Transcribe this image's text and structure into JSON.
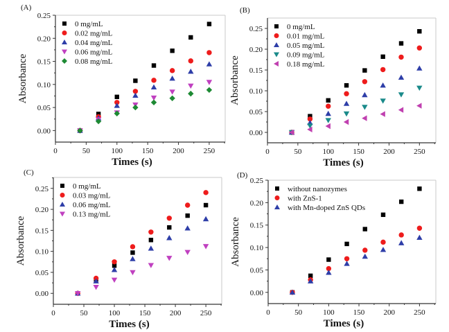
{
  "chart_data": [
    {
      "type": "scatter",
      "panel_label": "(A)",
      "xlabel": "Times (s)",
      "ylabel": "Absorbance",
      "xlim": [
        0,
        276
      ],
      "ylim": [
        -0.025,
        0.25
      ],
      "xticks": [
        0,
        50,
        100,
        150,
        200,
        250
      ],
      "xtick_labels": [
        "0",
        "50",
        "100",
        "150",
        "200",
        "250"
      ],
      "yticks": [
        0.0,
        0.05,
        0.1,
        0.15,
        0.2,
        0.25
      ],
      "ytick_labels": [
        "0.00",
        "0.05",
        "0.10",
        "0.15",
        "0.20",
        "0.25"
      ],
      "legend_position": "top-left",
      "x": [
        40,
        70,
        100,
        130,
        160,
        190,
        220,
        250
      ],
      "series": [
        {
          "name": "0 mg/mL",
          "marker": "square",
          "color": "#000000",
          "values": [
            0.0,
            0.036,
            0.073,
            0.108,
            0.141,
            0.173,
            0.202,
            0.231
          ]
        },
        {
          "name": "0.02 mg/mL",
          "marker": "circle",
          "color": "#ee1c1c",
          "values": [
            0.0,
            0.03,
            0.061,
            0.085,
            0.109,
            0.13,
            0.151,
            0.169
          ]
        },
        {
          "name": "0.04 mg/mL",
          "marker": "triangle-up",
          "color": "#2e3ea8",
          "values": [
            0.0,
            0.027,
            0.054,
            0.076,
            0.094,
            0.113,
            0.128,
            0.144
          ]
        },
        {
          "name": "0.06 mg/mL",
          "marker": "triangle-down",
          "color": "#c040c0",
          "values": [
            0.0,
            0.024,
            0.039,
            0.056,
            0.071,
            0.084,
            0.097,
            0.105
          ]
        },
        {
          "name": "0.08 mg/mL",
          "marker": "diamond",
          "color": "#1e8a34",
          "values": [
            0.0,
            0.02,
            0.037,
            0.05,
            0.061,
            0.07,
            0.08,
            0.088
          ]
        }
      ]
    },
    {
      "type": "scatter",
      "panel_label": "(B)",
      "xlabel": "Times (s)",
      "ylabel": "Absorbance",
      "xlim": [
        0,
        277
      ],
      "ylim": [
        -0.025,
        0.275
      ],
      "xticks": [
        0,
        50,
        100,
        150,
        200,
        250
      ],
      "xtick_labels": [
        "0",
        "50",
        "100",
        "150",
        "200",
        "250"
      ],
      "yticks": [
        0.0,
        0.05,
        0.1,
        0.15,
        0.2,
        0.25
      ],
      "ytick_labels": [
        "0.00",
        "0.05",
        "0.10",
        "0.15",
        "0.20",
        "0.25"
      ],
      "legend_position": "top-left",
      "x": [
        40,
        70,
        100,
        130,
        160,
        190,
        220,
        250
      ],
      "series": [
        {
          "name": "0 mg/mL",
          "marker": "square",
          "color": "#000000",
          "values": [
            0.0,
            0.039,
            0.077,
            0.113,
            0.149,
            0.182,
            0.214,
            0.243
          ]
        },
        {
          "name": "0.01 mg/mL",
          "marker": "circle",
          "color": "#ee1c1c",
          "values": [
            0.0,
            0.032,
            0.063,
            0.093,
            0.122,
            0.151,
            0.181,
            0.203
          ]
        },
        {
          "name": "0.05 mg/mL",
          "marker": "triangle-up",
          "color": "#2e3ea8",
          "values": [
            0.0,
            0.023,
            0.045,
            0.069,
            0.09,
            0.113,
            0.132,
            0.154
          ]
        },
        {
          "name": "0.09 mg/mL",
          "marker": "triangle-down",
          "color": "#1a8a8a",
          "values": [
            0.0,
            0.016,
            0.029,
            0.045,
            0.061,
            0.076,
            0.091,
            0.107
          ]
        },
        {
          "name": "0.18 mg/mL",
          "marker": "triangle-left",
          "color": "#c040b0",
          "values": [
            0.0,
            0.007,
            0.015,
            0.025,
            0.034,
            0.044,
            0.054,
            0.064
          ]
        }
      ]
    },
    {
      "type": "scatter",
      "panel_label": "(C)",
      "xlabel": "Times (s)",
      "ylabel": "Absorbance",
      "xlim": [
        0,
        276
      ],
      "ylim": [
        -0.026,
        0.276
      ],
      "xticks": [
        0,
        50,
        100,
        150,
        200,
        250
      ],
      "xtick_labels": [
        "0",
        "50",
        "100",
        "150",
        "200",
        "250"
      ],
      "yticks": [
        0.0,
        0.05,
        0.1,
        0.15,
        0.2,
        0.25
      ],
      "ytick_labels": [
        "0.00",
        "0.05",
        "0.10",
        "0.15",
        "0.20",
        "0.25"
      ],
      "legend_position": "top-left",
      "x": [
        40,
        70,
        100,
        130,
        160,
        190,
        220,
        250
      ],
      "series": [
        {
          "name": "0 mg/mL",
          "marker": "square",
          "color": "#000000",
          "values": [
            0.0,
            0.033,
            0.066,
            0.097,
            0.127,
            0.157,
            0.185,
            0.21
          ]
        },
        {
          "name": "0.03 mg/mL",
          "marker": "circle",
          "color": "#ee1c1c",
          "values": [
            0.0,
            0.036,
            0.075,
            0.111,
            0.146,
            0.179,
            0.21,
            0.24
          ]
        },
        {
          "name": "0.06 mg/mL",
          "marker": "triangle-up",
          "color": "#2e3ea8",
          "values": [
            0.0,
            0.029,
            0.056,
            0.082,
            0.107,
            0.132,
            0.155,
            0.177
          ]
        },
        {
          "name": "0.13 mg/mL",
          "marker": "triangle-down",
          "color": "#c040c0",
          "values": [
            0.0,
            0.015,
            0.032,
            0.05,
            0.067,
            0.084,
            0.098,
            0.112
          ]
        }
      ]
    },
    {
      "type": "scatter",
      "panel_label": "(D)",
      "xlabel": "Times (s)",
      "ylabel": "Absorbance",
      "xlim": [
        0,
        277
      ],
      "ylim": [
        -0.025,
        0.25
      ],
      "xticks": [
        0,
        50,
        100,
        150,
        200,
        250
      ],
      "xtick_labels": [
        "0",
        "50",
        "100",
        "150",
        "200",
        "250"
      ],
      "yticks": [
        0.0,
        0.05,
        0.1,
        0.15,
        0.2,
        0.25
      ],
      "ytick_labels": [
        "0.00",
        "0.05",
        "0.10",
        "0.15",
        "0.20",
        "0.25"
      ],
      "legend_position": "top-left",
      "x": [
        40,
        70,
        100,
        130,
        160,
        190,
        220,
        250
      ],
      "series": [
        {
          "name": "without nanozymes",
          "marker": "square",
          "color": "#000000",
          "values": [
            0.0,
            0.037,
            0.073,
            0.108,
            0.141,
            0.173,
            0.202,
            0.231
          ]
        },
        {
          "name": "with ZnS-1",
          "marker": "circle",
          "color": "#ee1c1c",
          "values": [
            0.0,
            0.028,
            0.053,
            0.075,
            0.094,
            0.112,
            0.128,
            0.143
          ]
        },
        {
          "name": "with Mn-doped ZnS QDs",
          "marker": "triangle-up",
          "color": "#2e3ea8",
          "values": [
            0.0,
            0.025,
            0.044,
            0.064,
            0.08,
            0.095,
            0.11,
            0.122
          ]
        }
      ]
    }
  ]
}
